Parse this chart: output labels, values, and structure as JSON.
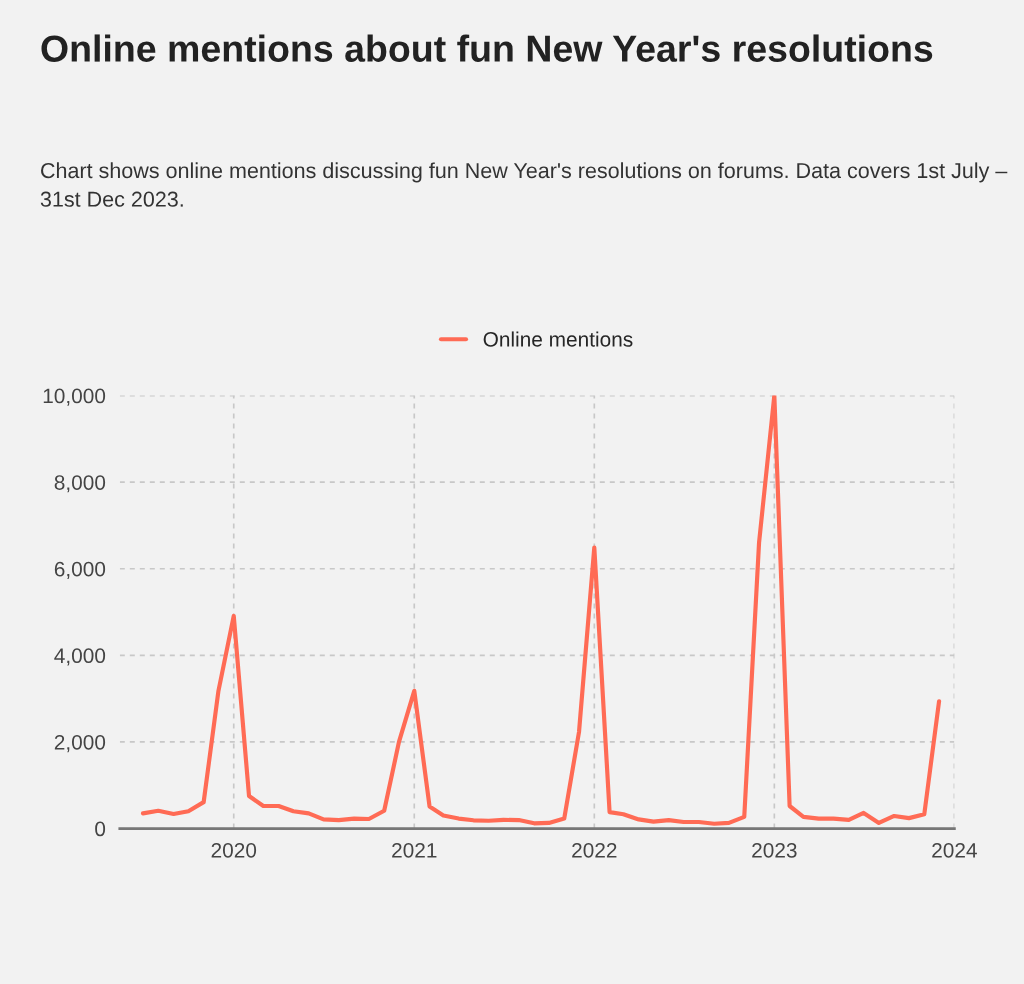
{
  "chart_data": {
    "type": "line",
    "title": "Online mentions about fun New Year's resolutions",
    "subtitle": "Chart shows online mentions discussing fun New Year's resolutions on forums. Data covers 1st July – 31st Dec 2023.",
    "x": [
      "2019-07",
      "2019-08",
      "2019-09",
      "2019-10",
      "2019-11",
      "2019-12",
      "2020-01",
      "2020-02",
      "2020-03",
      "2020-04",
      "2020-05",
      "2020-06",
      "2020-07",
      "2020-08",
      "2020-09",
      "2020-10",
      "2020-11",
      "2020-12",
      "2021-01",
      "2021-02",
      "2021-03",
      "2021-04",
      "2021-05",
      "2021-06",
      "2021-07",
      "2021-08",
      "2021-09",
      "2021-10",
      "2021-11",
      "2021-12",
      "2022-01",
      "2022-02",
      "2022-03",
      "2022-04",
      "2022-05",
      "2022-06",
      "2022-07",
      "2022-08",
      "2022-09",
      "2022-10",
      "2022-11",
      "2022-12",
      "2023-01",
      "2023-02",
      "2023-03",
      "2023-04",
      "2023-05",
      "2023-06",
      "2023-07",
      "2023-08",
      "2023-09",
      "2023-10",
      "2023-11",
      "2023-12"
    ],
    "series": [
      {
        "name": "Online mentions",
        "color": "#ff6b55",
        "values": [
          350,
          410,
          335,
          400,
          610,
          3180,
          4910,
          750,
          520,
          520,
          400,
          350,
          210,
          195,
          230,
          220,
          410,
          2000,
          3180,
          510,
          300,
          230,
          190,
          180,
          200,
          195,
          120,
          130,
          230,
          2230,
          6490,
          380,
          330,
          210,
          160,
          195,
          150,
          150,
          110,
          130,
          270,
          6600,
          10000,
          520,
          270,
          230,
          230,
          200,
          360,
          130,
          290,
          240,
          330,
          2940
        ]
      }
    ],
    "xlim": [
      "2019-05-15",
      "2024-01-01"
    ],
    "xticks": [
      "2020",
      "2021",
      "2022",
      "2023",
      "2024"
    ],
    "ylim": [
      0,
      10000
    ],
    "yticks": [
      0,
      {
        "value": 2000,
        "label": "2,000"
      },
      {
        "value": 4000,
        "label": "4,000"
      },
      {
        "value": 6000,
        "label": "6,000"
      },
      {
        "value": 8000,
        "label": "8,000"
      },
      {
        "value": 10000,
        "label": "10,000"
      }
    ],
    "grid": true,
    "legend": "top",
    "marker": "none",
    "line_style": "solid"
  }
}
